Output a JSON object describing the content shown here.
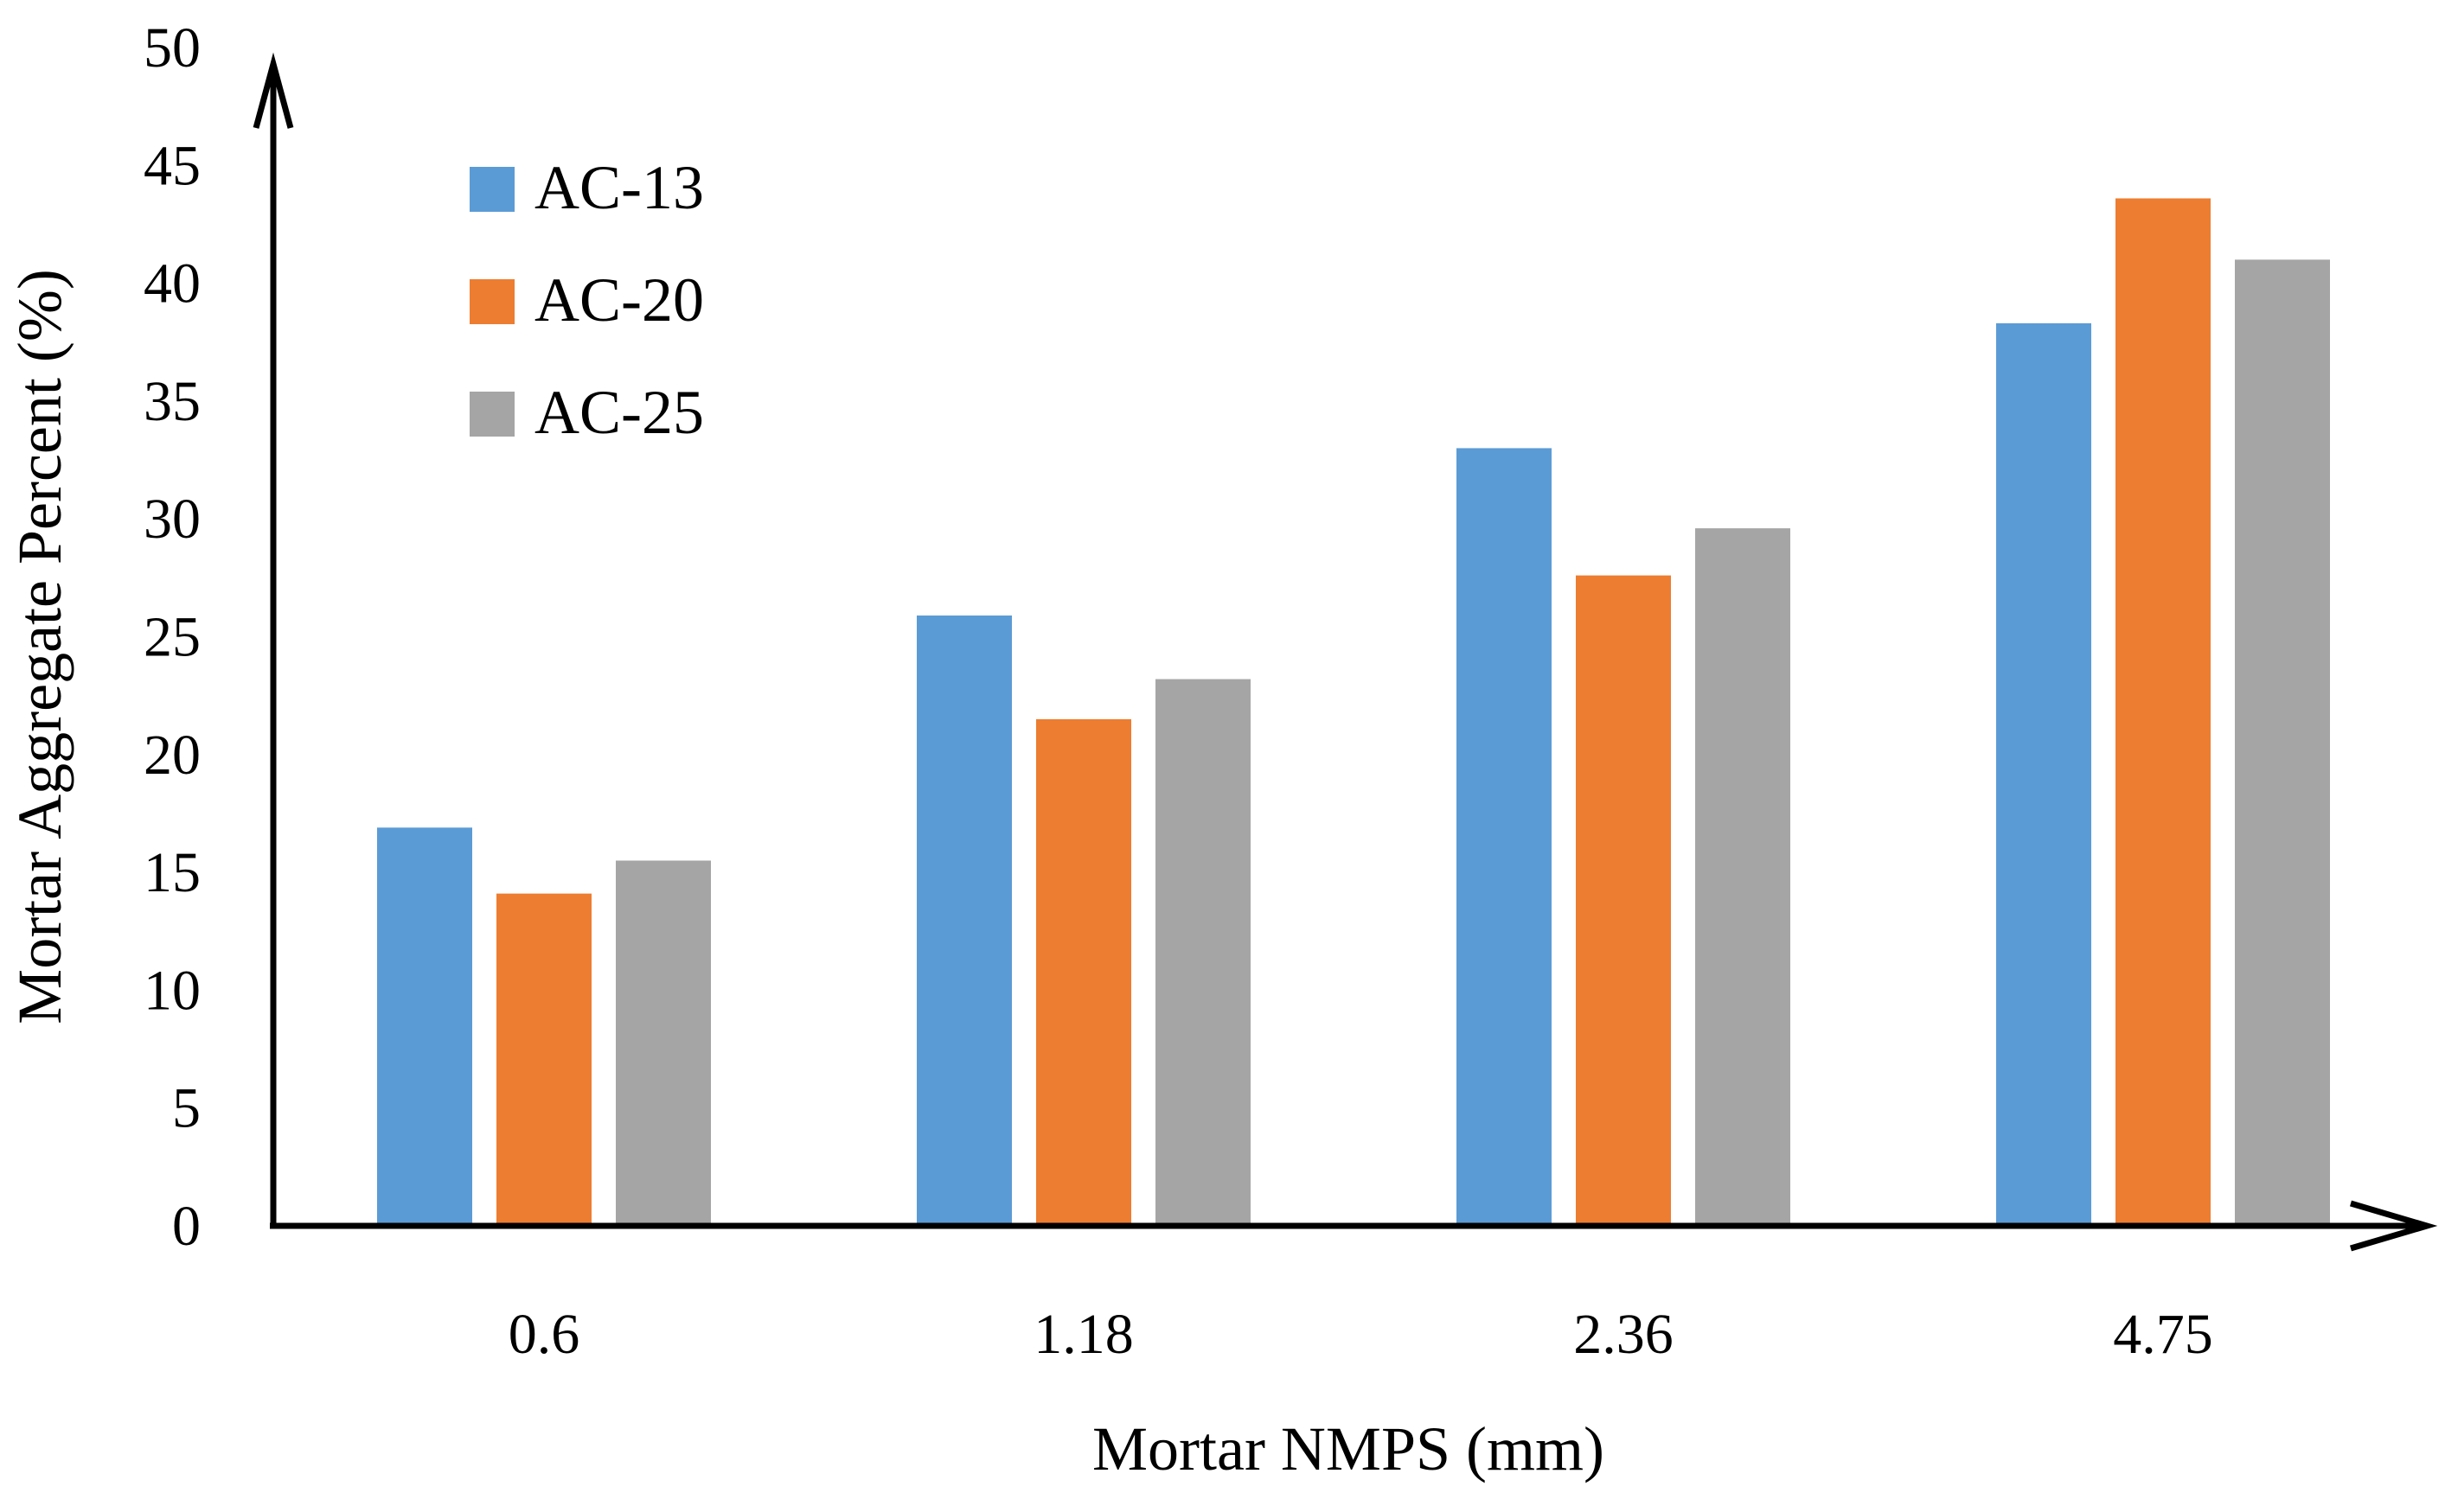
{
  "chart_data": {
    "type": "bar",
    "title": "",
    "xlabel": "Mortar NMPS (mm)",
    "ylabel": "Mortar Aggregate Percent (%)",
    "categories": [
      "0.6",
      "1.18",
      "2.36",
      "4.75"
    ],
    "series": [
      {
        "name": "AC-13",
        "color": "#5B9BD5",
        "values": [
          16.9,
          25.9,
          33.0,
          38.3
        ]
      },
      {
        "name": "AC-20",
        "color": "#ED7D31",
        "values": [
          14.1,
          21.5,
          27.6,
          43.6
        ]
      },
      {
        "name": "AC-25",
        "color": "#A5A5A5",
        "values": [
          15.5,
          23.2,
          29.6,
          41.0
        ]
      }
    ],
    "ylim": [
      0,
      50
    ],
    "yticks": [
      "0",
      "5",
      "10",
      "15",
      "20",
      "25",
      "30",
      "35",
      "40",
      "45",
      "50"
    ],
    "grid": false,
    "legend_position": "top-left"
  }
}
